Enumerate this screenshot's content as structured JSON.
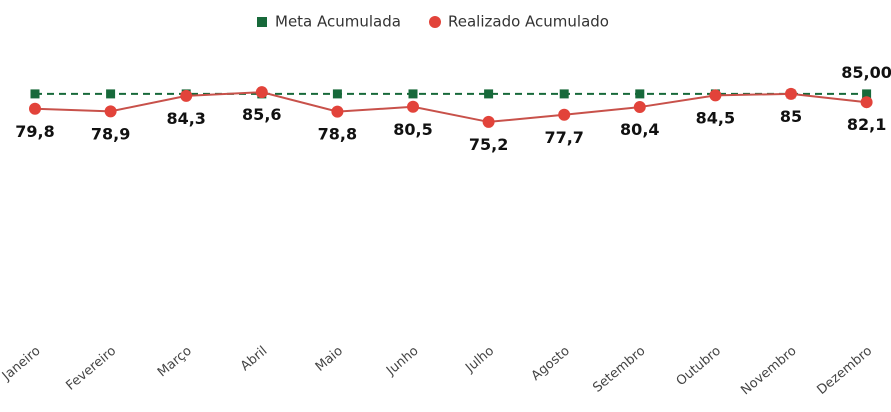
{
  "chart_data": {
    "type": "line",
    "categories": [
      "Janeiro",
      "Fevereiro",
      "Março",
      "Abril",
      "Maio",
      "Junho",
      "Julho",
      "Agosto",
      "Setembro",
      "Outubro",
      "Novembro",
      "Dezembro"
    ],
    "series": [
      {
        "name": "Meta Acumulada",
        "color": "#17693a",
        "dashed": true,
        "marker": "square",
        "values": [
          85,
          85,
          85,
          85,
          85,
          85,
          85,
          85,
          85,
          85,
          85,
          85
        ],
        "value_labels": [
          null,
          null,
          null,
          null,
          null,
          null,
          null,
          null,
          null,
          null,
          null,
          "85,00"
        ]
      },
      {
        "name": "Realizado Acumulado",
        "color": "#e2433a",
        "dashed": false,
        "marker": "circle",
        "values": [
          79.8,
          78.9,
          84.3,
          85.6,
          78.8,
          80.5,
          75.2,
          77.7,
          80.4,
          84.5,
          85,
          82.1
        ],
        "value_labels": [
          "79,8",
          "78,9",
          "84,3",
          "85,6",
          "78,8",
          "80,5",
          "75,2",
          "77,7",
          "80,4",
          "84,5",
          "85",
          "82,1"
        ]
      }
    ],
    "ylim": [
      0,
      100
    ],
    "legend": "top"
  }
}
